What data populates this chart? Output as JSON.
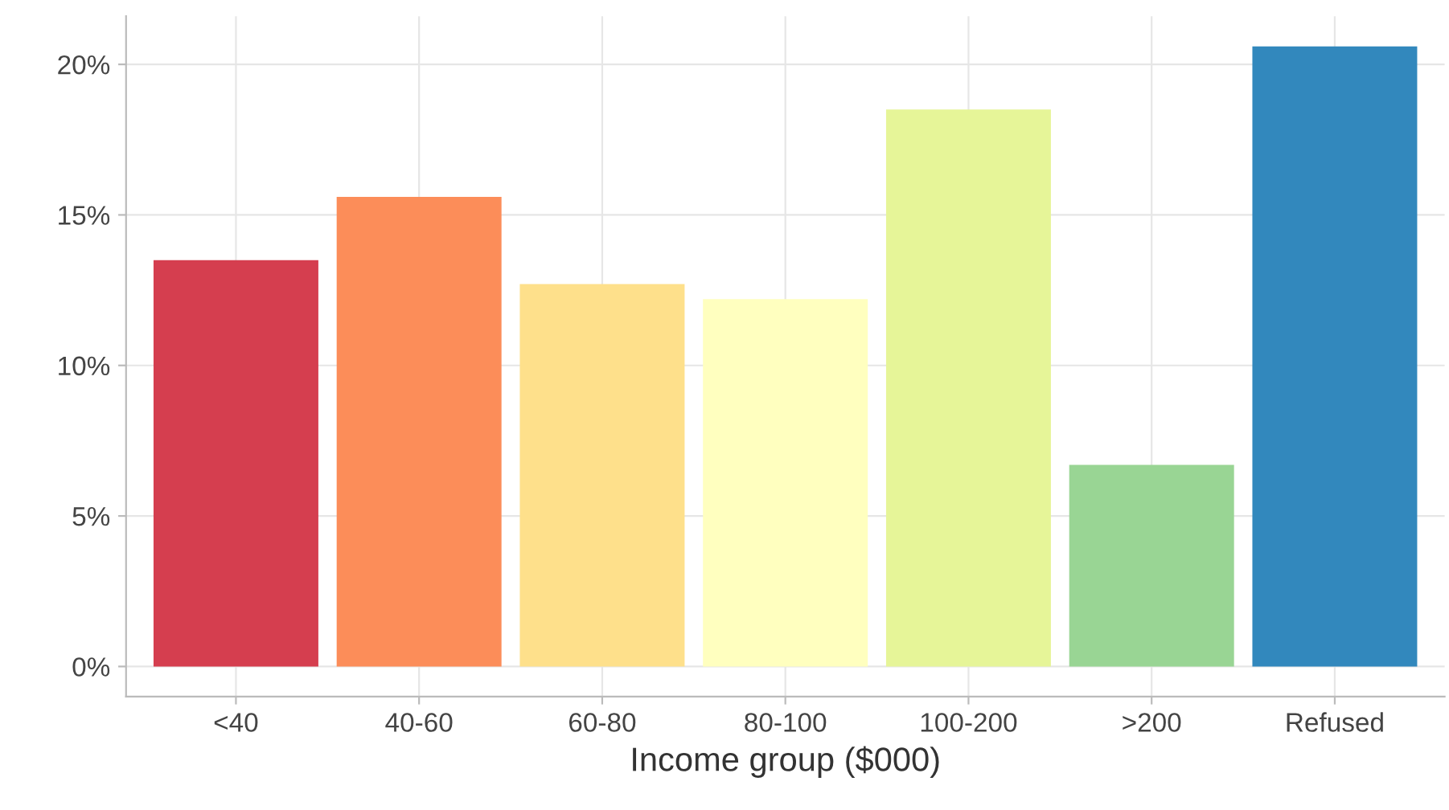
{
  "chart_data": {
    "type": "bar",
    "xlabel": "Income group ($000)",
    "categories": [
      "<40",
      "40-60",
      "60-80",
      "80-100",
      "100-200",
      ">200",
      "Refused"
    ],
    "values": [
      13.5,
      15.6,
      12.7,
      12.2,
      18.5,
      6.7,
      20.6
    ],
    "colors": [
      "#d53e4f",
      "#fc8d59",
      "#fee08b",
      "#ffffbf",
      "#e6f598",
      "#99d594",
      "#3288bd"
    ],
    "ylim": [
      -1,
      21.6
    ],
    "yticks": [
      {
        "value": 0,
        "label": "0%"
      },
      {
        "value": 5,
        "label": "5%"
      },
      {
        "value": 10,
        "label": "10%"
      },
      {
        "value": 15,
        "label": "15%"
      },
      {
        "value": 20,
        "label": "20%"
      }
    ],
    "grid": true,
    "legend": false
  }
}
